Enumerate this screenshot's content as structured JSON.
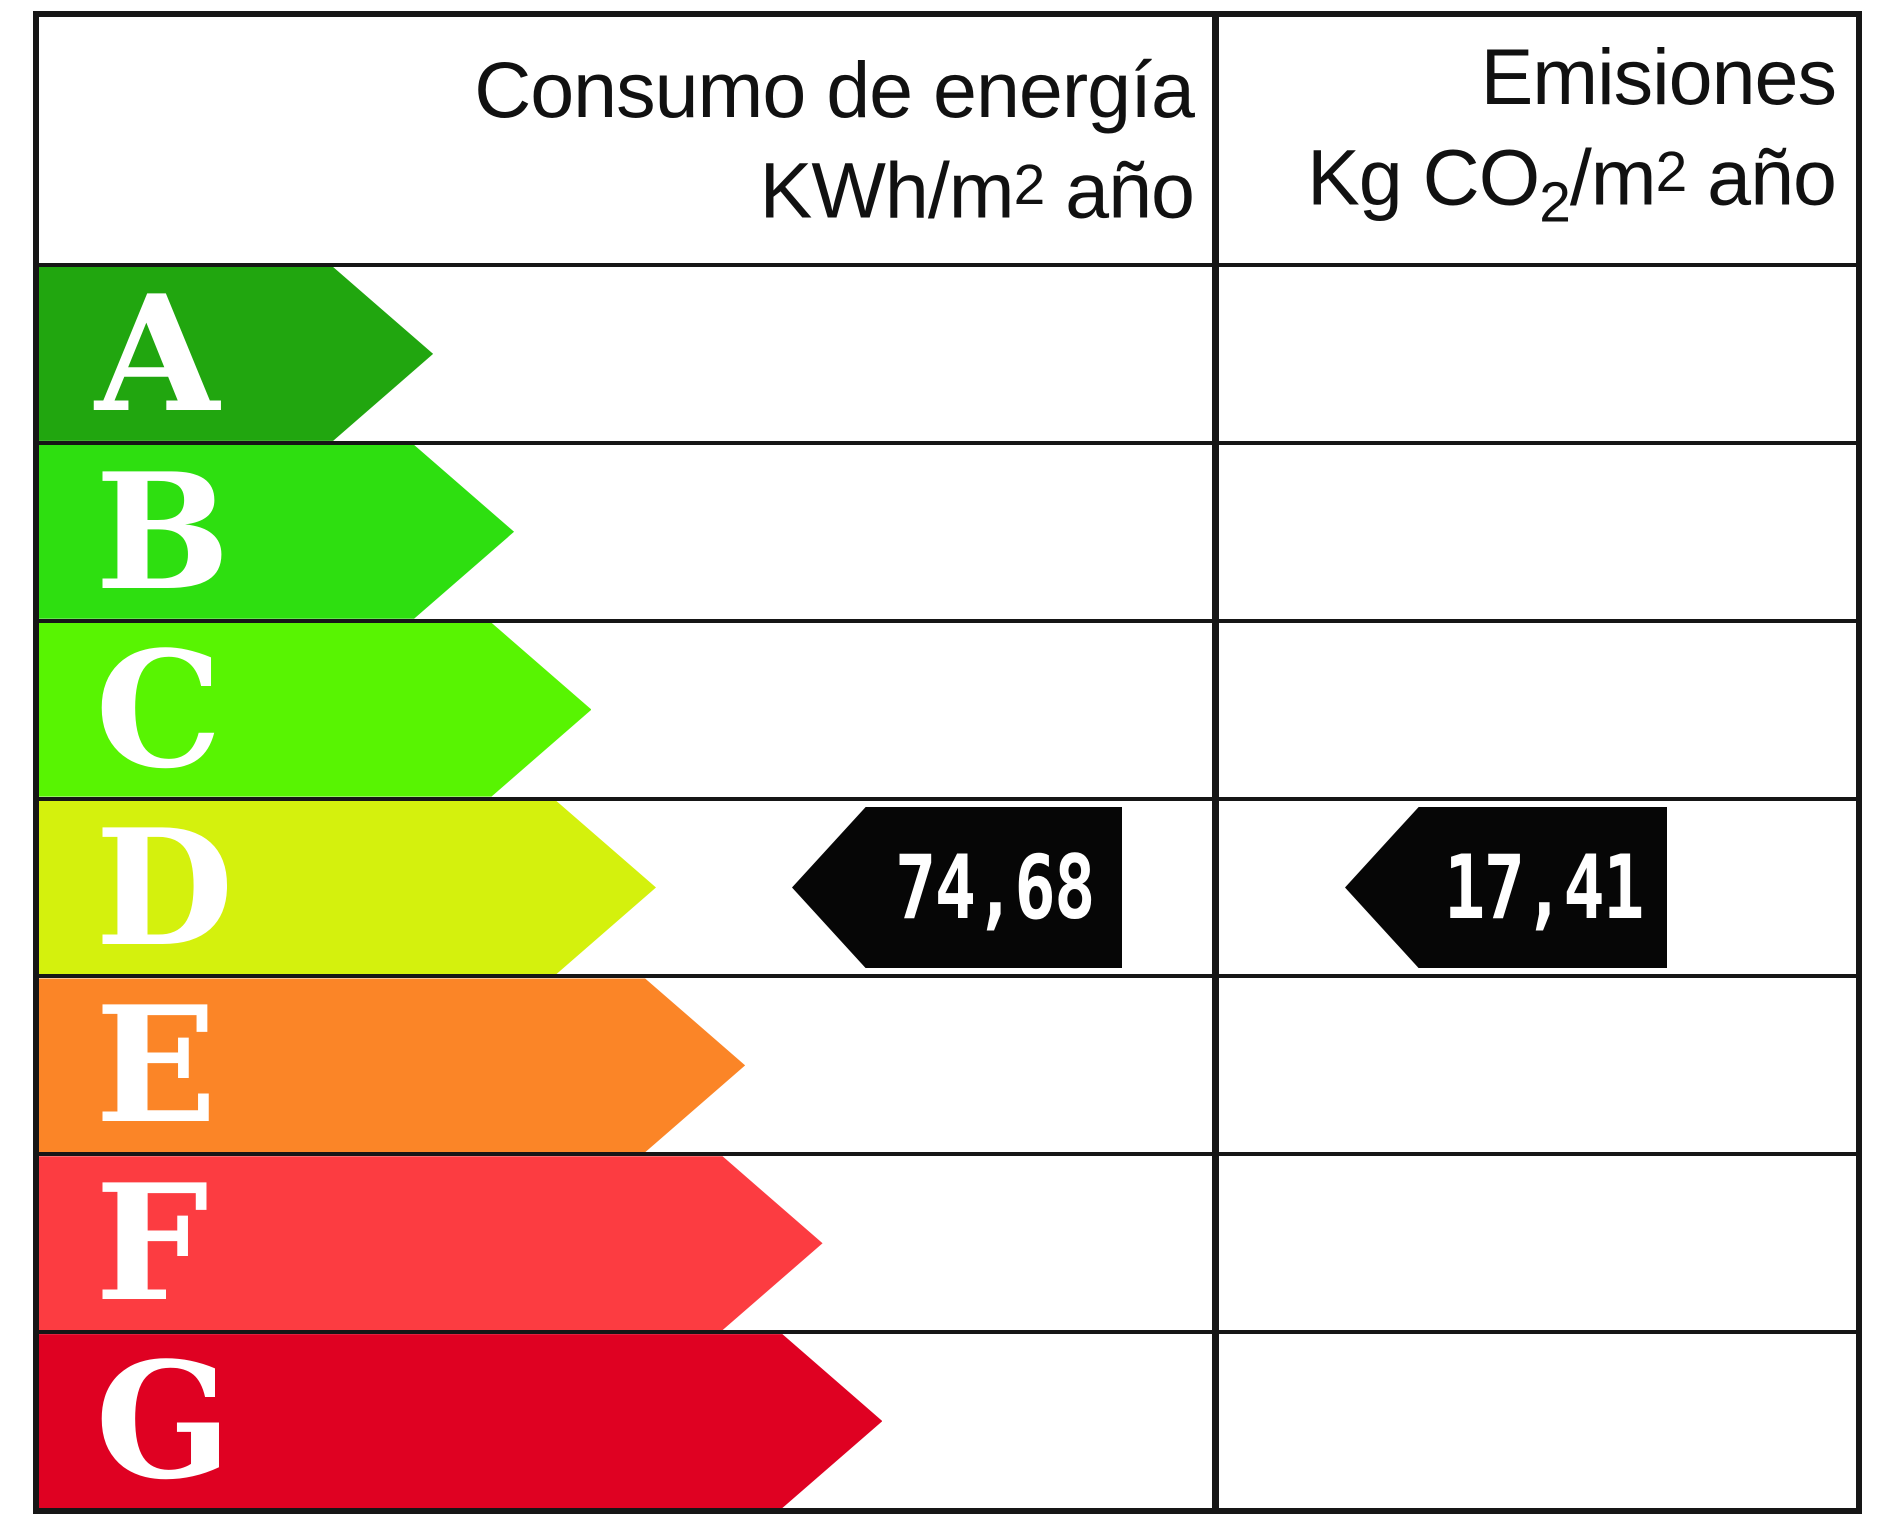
{
  "header": {
    "energy_title": "Consumo de energía",
    "energy_units_prefix": "KWh/m",
    "energy_units_sup": "2",
    "energy_units_suffix": " año",
    "emissions_title": "Emisiones",
    "emissions_units_p1": "Kg CO",
    "emissions_units_sub": "2",
    "emissions_units_p2": "/m",
    "emissions_units_sup": "2",
    "emissions_units_suffix": " año"
  },
  "ratings": [
    {
      "letter": "A",
      "color": "#21A60F",
      "width_pct": 33.6
    },
    {
      "letter": "B",
      "color": "#2EDF10",
      "width_pct": 40.5
    },
    {
      "letter": "C",
      "color": "#58F402",
      "width_pct": 47.1
    },
    {
      "letter": "D",
      "color": "#D4F10D",
      "width_pct": 52.6
    },
    {
      "letter": "E",
      "color": "#FB8527",
      "width_pct": 60.2
    },
    {
      "letter": "F",
      "color": "#FC3C41",
      "width_pct": 66.8
    },
    {
      "letter": "G",
      "color": "#DF0122",
      "width_pct": 71.9
    }
  ],
  "pointer": {
    "category": "D",
    "energy_value": "74,68",
    "emissions_value": "17,41"
  },
  "colors": {
    "border": "#161616",
    "pointer_bg": "#060606",
    "pointer_text": "#ffffff",
    "header_text": "#111111",
    "letter_text": "#ffffff",
    "background": "#ffffff"
  },
  "chart_data": {
    "type": "bar",
    "orientation": "horizontal",
    "categories": [
      "A",
      "B",
      "C",
      "D",
      "E",
      "F",
      "G"
    ],
    "bar_colors": [
      "#21A60F",
      "#2EDF10",
      "#58F402",
      "#D4F10D",
      "#FB8527",
      "#FC3C41",
      "#DF0122"
    ],
    "bar_relative_widths": [
      0.34,
      0.41,
      0.47,
      0.53,
      0.6,
      0.67,
      0.72
    ],
    "rated_category": "D",
    "series": [
      {
        "name": "Consumo de energía KWh/m2 año",
        "category": "D",
        "value": 74.68,
        "value_label": "74,68"
      },
      {
        "name": "Emisiones Kg CO2/m2 año",
        "category": "D",
        "value": 17.41,
        "value_label": "17,41"
      }
    ],
    "legend": "none",
    "grid": "table-lines"
  }
}
